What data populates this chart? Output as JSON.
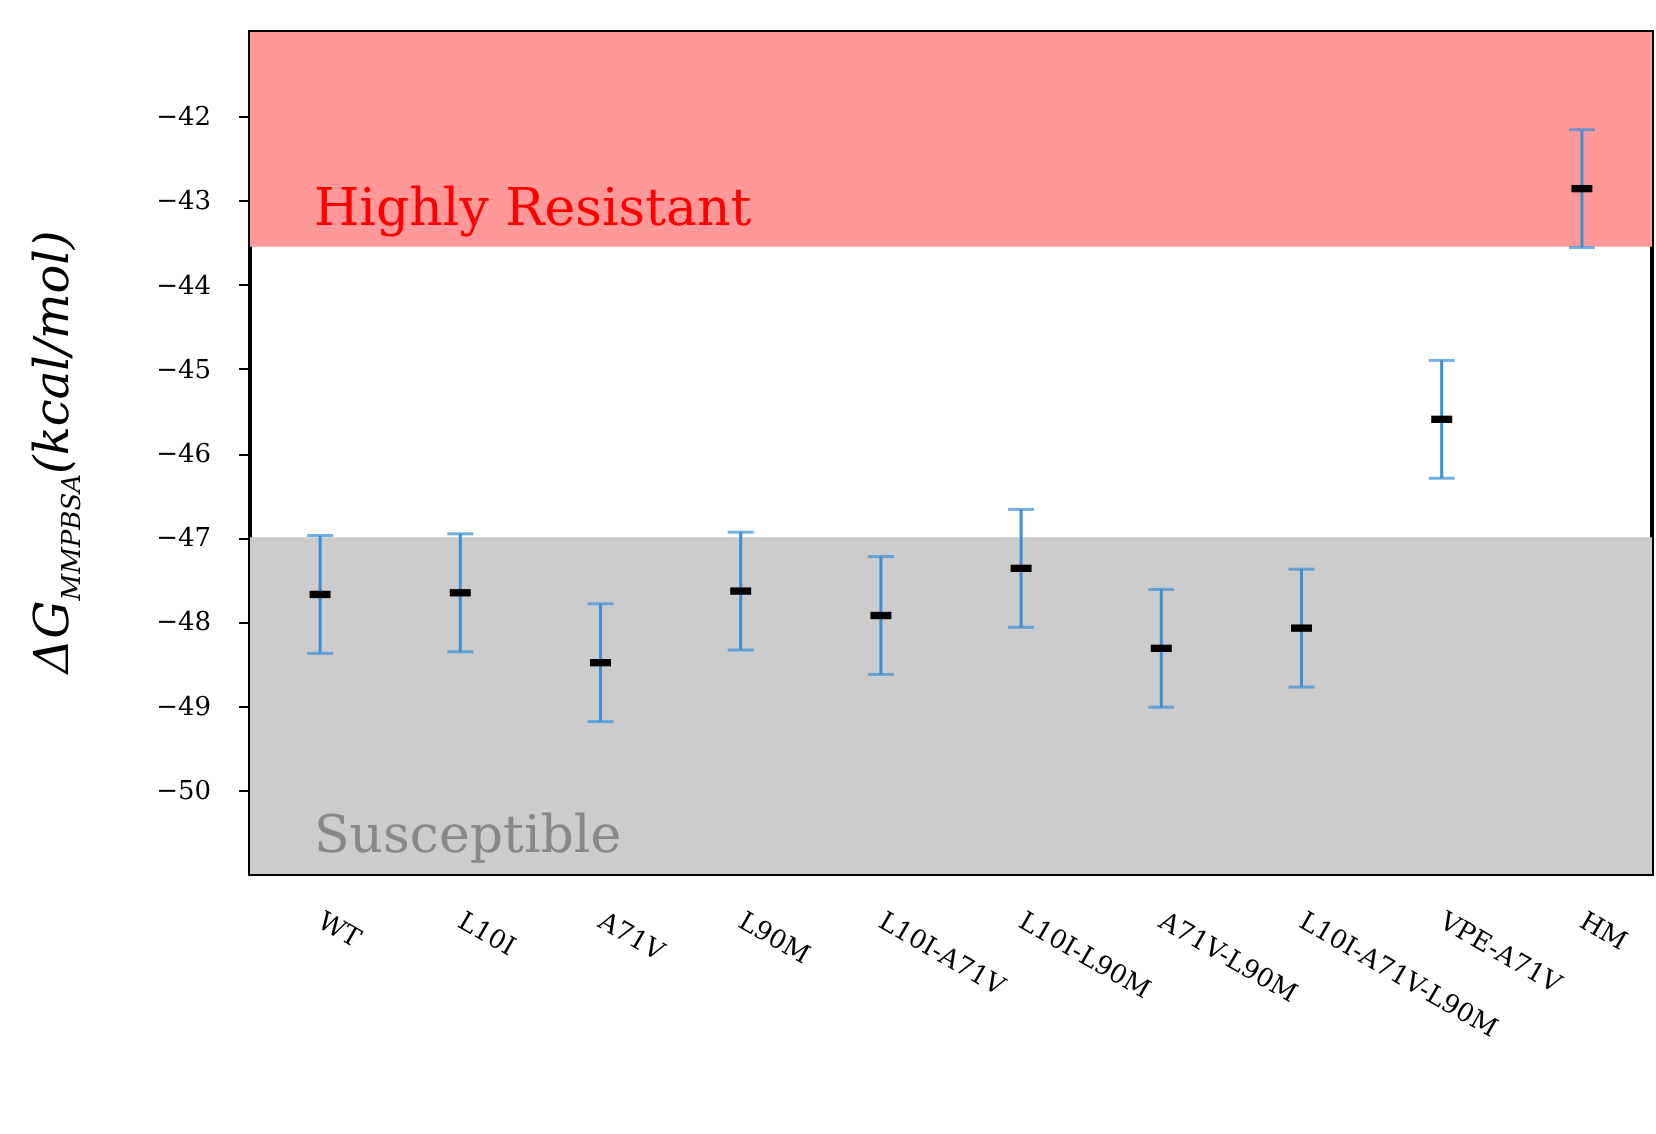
{
  "chart_data": {
    "type": "scatter",
    "ylabel": "ΔG$_{MMPBSA}$(kcal/mol)",
    "categories": [
      "WT",
      "L10I",
      "A71V",
      "L90M",
      "L10I-A71V",
      "L10I-L90M",
      "A71V-L90M",
      "L10I-A71V-L90M",
      "VPE-A71V",
      "HM"
    ],
    "series": [
      {
        "color": "#000000",
        "values": [
          -47.68,
          -47.66,
          -48.49,
          -47.64,
          -47.93,
          -47.37,
          -48.32,
          -48.08,
          -45.6,
          -42.86
        ],
        "errors": [
          0.7,
          0.7,
          0.7,
          0.7,
          0.7,
          0.7,
          0.7,
          0.7,
          0.7,
          0.7
        ]
      }
    ],
    "ylim": [
      -51,
      -41
    ],
    "yticks": [
      -50,
      -49,
      -48,
      -47,
      -46,
      -45,
      -44,
      -43,
      -42
    ],
    "bands": [
      {
        "axis": "y",
        "from": -43.55,
        "to": -41,
        "label": "Highly Resistant",
        "color": "#ff9999"
      },
      {
        "axis": "y",
        "from": -51,
        "to": -47,
        "label": "Susceptible",
        "color": "#cccccc"
      }
    ],
    "grid": false
  }
}
